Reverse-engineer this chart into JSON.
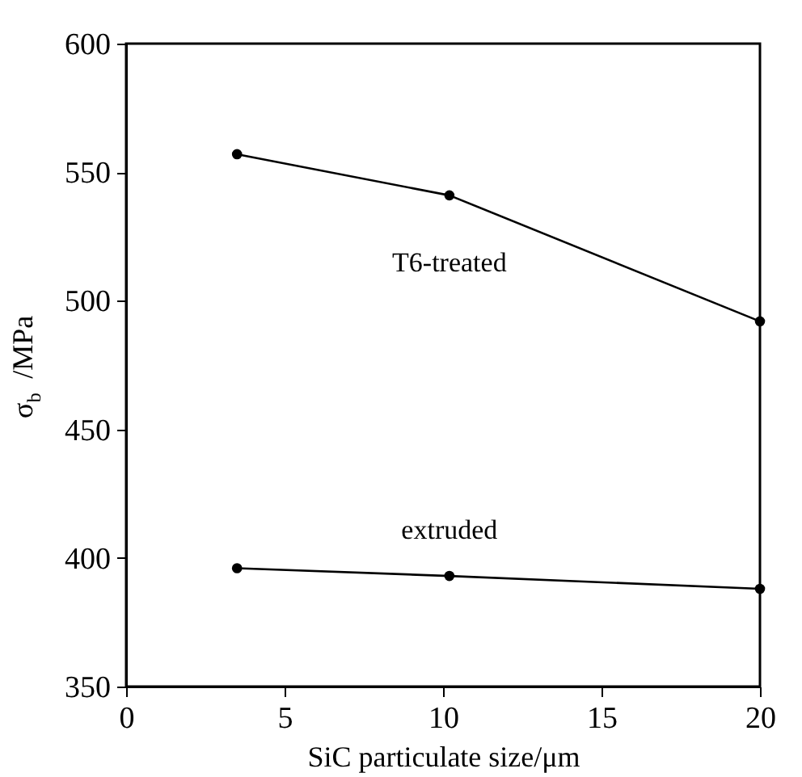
{
  "chart_data": {
    "type": "line",
    "xlabel": "SiC particulate size/μm",
    "ylabel": "σ$_{b}$ /MPa",
    "xlim": [
      0,
      20
    ],
    "xticks": [
      0,
      5,
      10,
      15,
      20
    ],
    "ylim": [
      350,
      600
    ],
    "yticks": [
      350,
      400,
      450,
      500,
      550,
      600
    ],
    "grid": false,
    "legend": false,
    "marker": "circle",
    "line_style": "solid",
    "series": [
      {
        "name": "T6-treated",
        "color": "#000000",
        "x": [
          3.5,
          10.2,
          20
        ],
        "values": [
          557,
          541,
          492
        ]
      },
      {
        "name": "extruded",
        "color": "#000000",
        "x": [
          3.5,
          10.2,
          20
        ],
        "values": [
          396,
          393,
          388
        ]
      }
    ]
  }
}
